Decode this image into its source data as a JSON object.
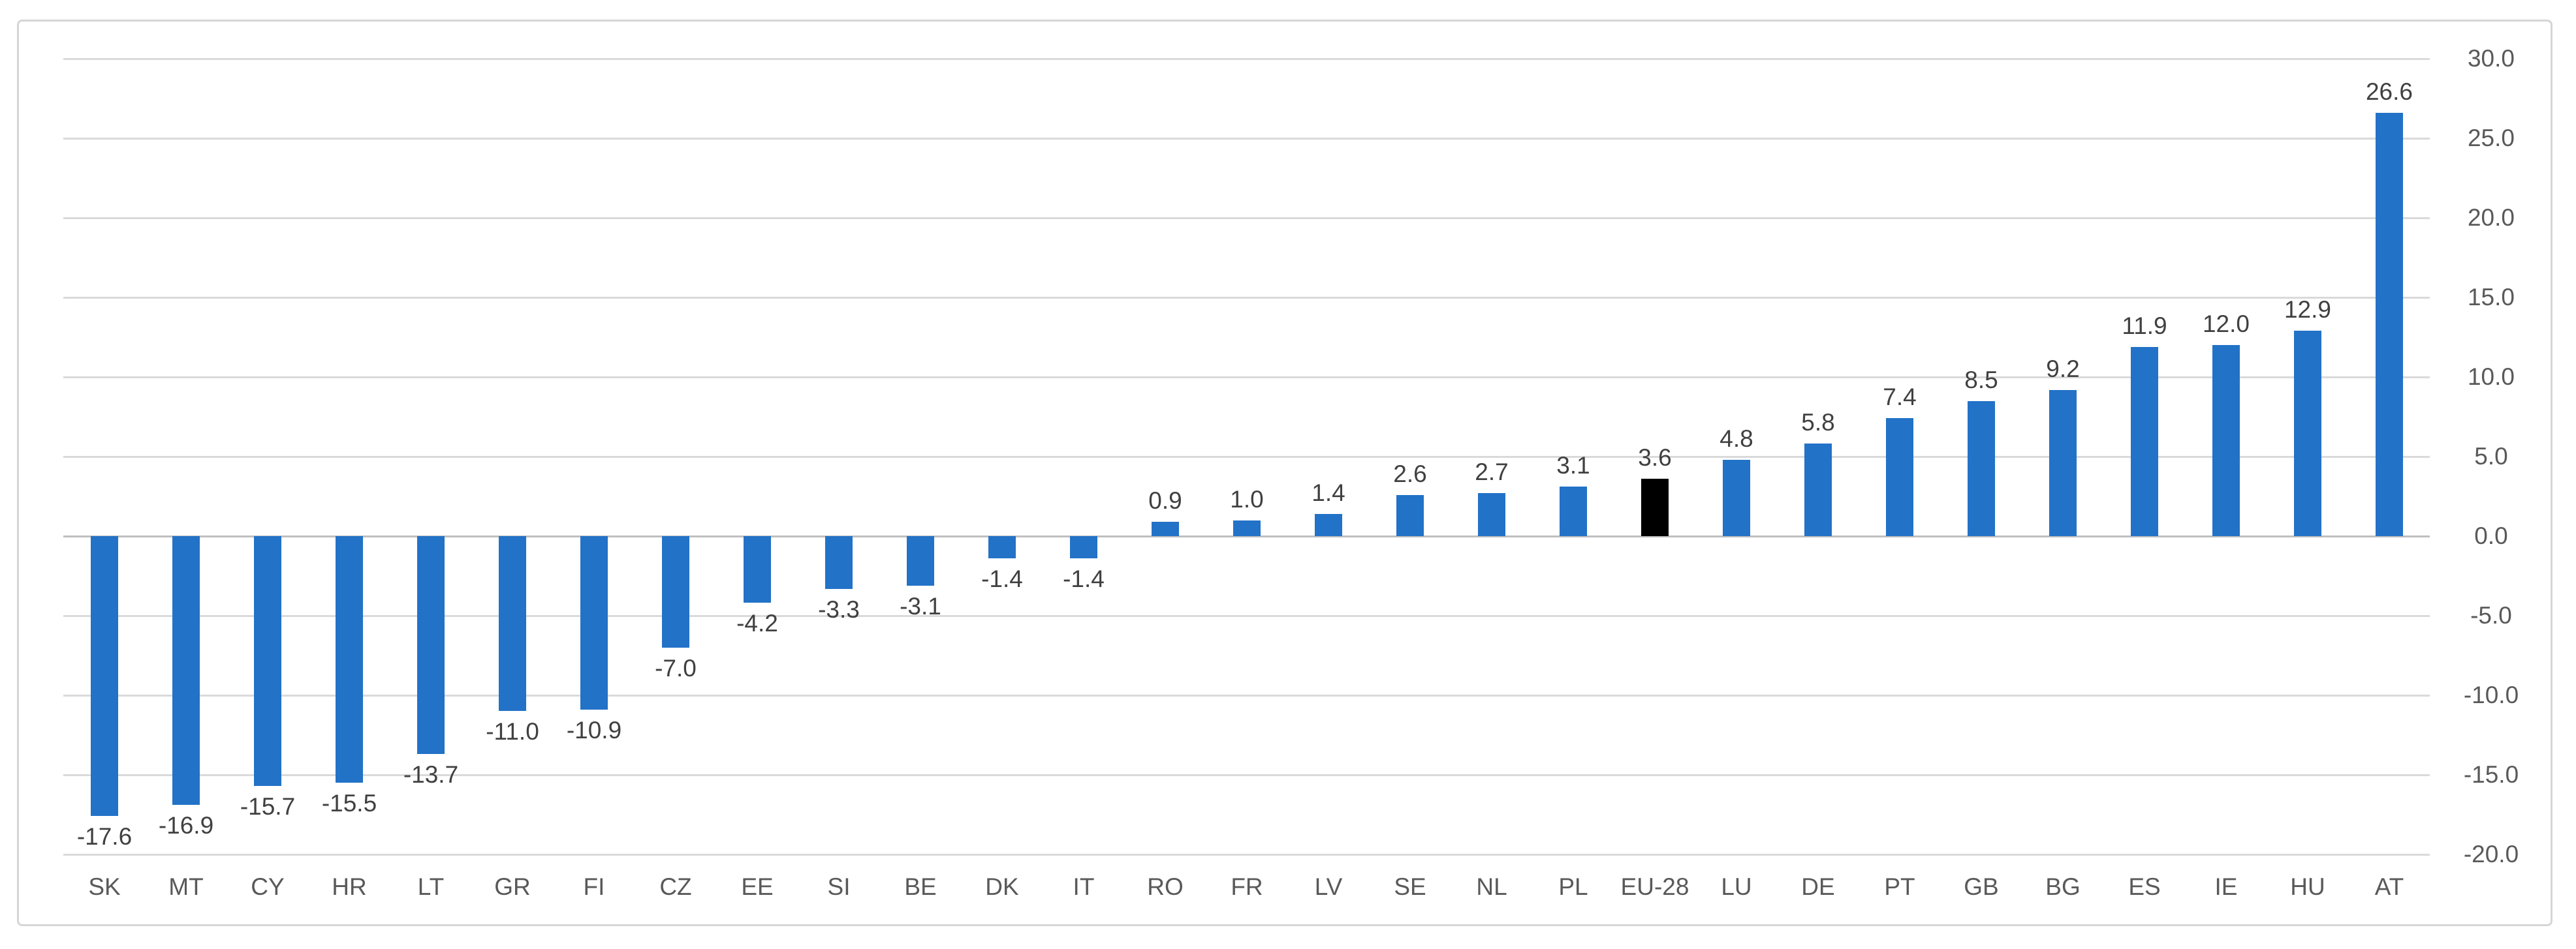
{
  "chart_data": {
    "type": "bar",
    "categories": [
      "SK",
      "MT",
      "CY",
      "HR",
      "LT",
      "GR",
      "FI",
      "CZ",
      "EE",
      "SI",
      "BE",
      "DK",
      "IT",
      "RO",
      "FR",
      "LV",
      "SE",
      "NL",
      "PL",
      "EU-28",
      "LU",
      "DE",
      "PT",
      "GB",
      "BG",
      "ES",
      "IE",
      "HU",
      "AT"
    ],
    "values": [
      -17.6,
      -16.9,
      -15.7,
      -15.5,
      -13.7,
      -11.0,
      -10.9,
      -7.0,
      -4.2,
      -3.3,
      -3.1,
      -1.4,
      -1.4,
      0.9,
      1.0,
      1.4,
      2.6,
      2.7,
      3.1,
      3.6,
      4.8,
      5.8,
      7.4,
      8.5,
      9.2,
      11.9,
      12.0,
      12.9,
      26.6
    ],
    "data_labels": [
      "-17.6",
      "-16.9",
      "-15.7",
      "-15.5",
      "-13.7",
      "-11.0",
      "-10.9",
      "-7.0",
      "-4.2",
      "-3.3",
      "-3.1",
      "-1.4",
      "-1.4",
      "0.9",
      "1.0",
      "1.4",
      "2.6",
      "2.7",
      "3.1",
      "3.6",
      "4.8",
      "5.8",
      "7.4",
      "8.5",
      "9.2",
      "11.9",
      "12.0",
      "12.9",
      "26.6"
    ],
    "highlight_category": "EU-28",
    "title": "",
    "xlabel": "",
    "ylabel": "",
    "y_axis": {
      "side": "right",
      "min": -20,
      "max": 30,
      "step": 5,
      "tick_labels": [
        "30.0",
        "25.0",
        "20.0",
        "15.0",
        "10.0",
        "5.0",
        "0.0",
        "-5.0",
        "-10.0",
        "-15.0",
        "-20.0"
      ]
    },
    "grid": true,
    "legend": false,
    "colors": {
      "bar": "#2272c7",
      "highlight_bar": "#000000",
      "gridline": "#dadada",
      "zero_line": "#bfbfbf",
      "chart_border": "#d6d6d6",
      "axis_text": "#595959",
      "data_label_text": "#404040",
      "background": "#ffffff"
    }
  }
}
